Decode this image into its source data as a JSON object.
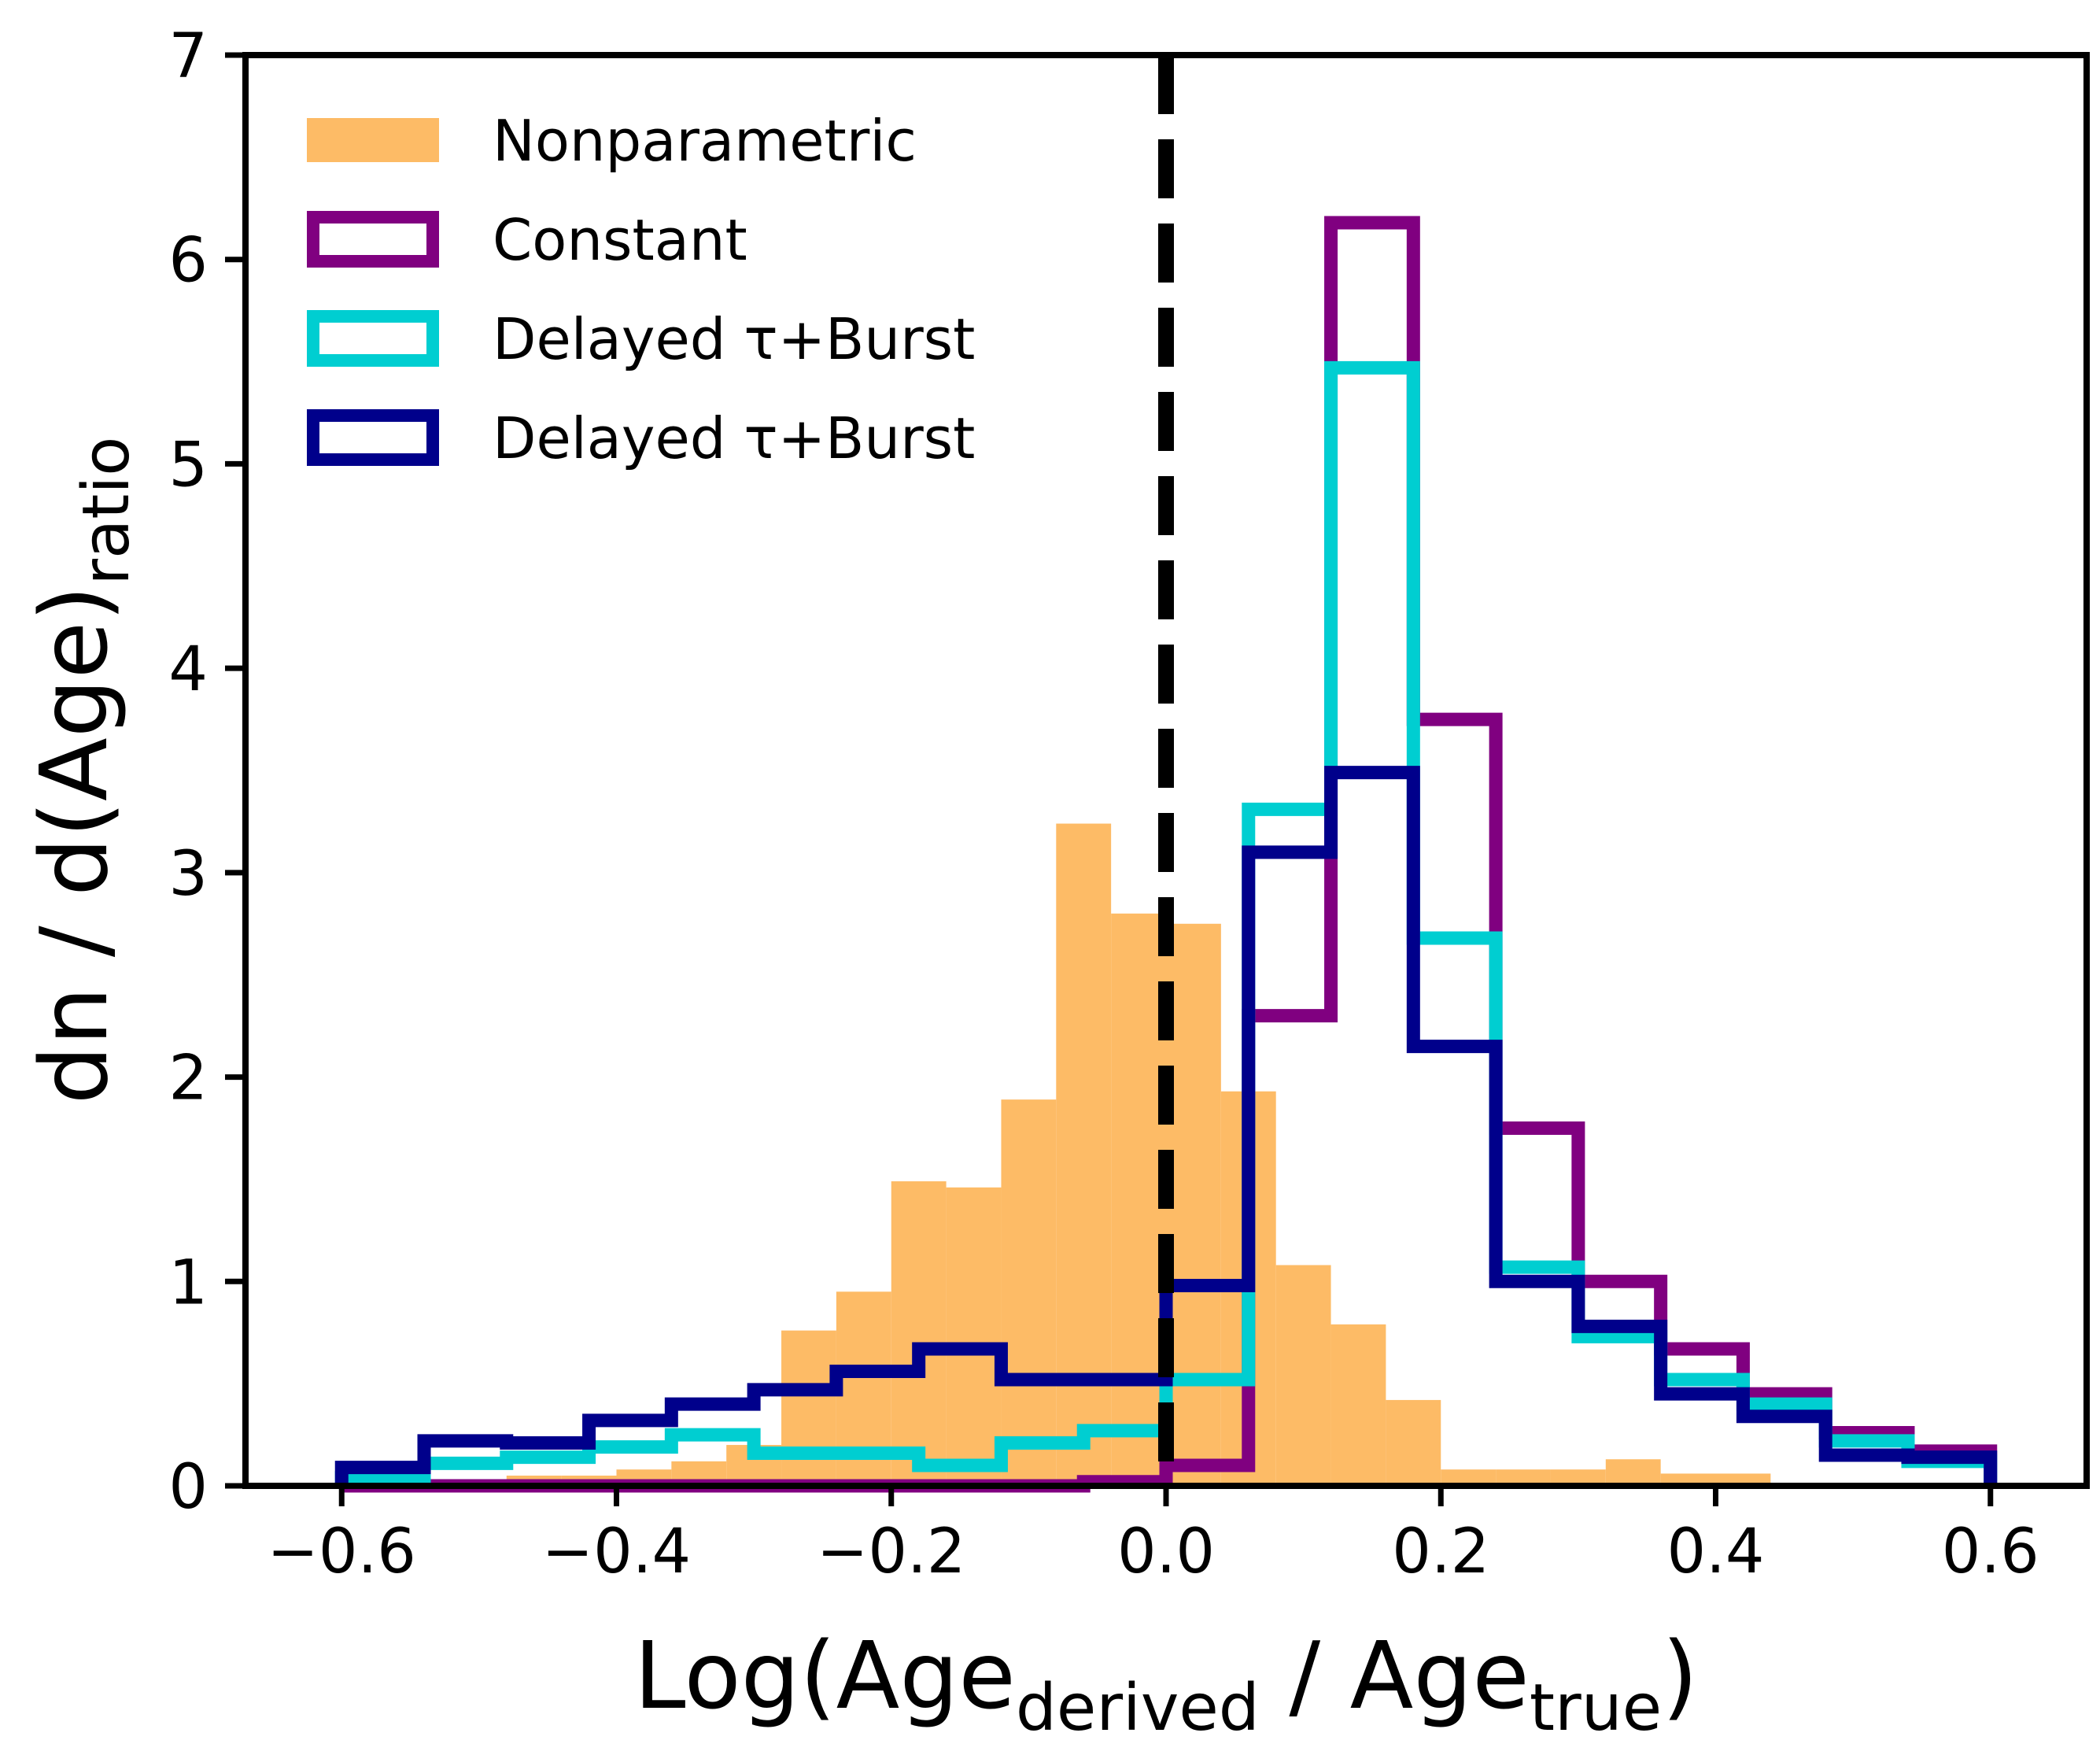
{
  "chart_data": {
    "type": "histogram",
    "xlabel": {
      "main": "Log(Age",
      "sub1": "derived",
      "mid": " / Age",
      "sub2": "true",
      "end": ")"
    },
    "ylabel": {
      "main": "dn / d(Age)",
      "sub": "ratio"
    },
    "xlim": [
      -0.67,
      0.67
    ],
    "ylim": [
      0,
      7
    ],
    "xticks": [
      -0.6,
      -0.4,
      -0.2,
      0.0,
      0.2,
      0.4,
      0.6
    ],
    "xtick_labels": [
      "−0.6",
      "−0.4",
      "−0.2",
      "0.0",
      "0.2",
      "0.4",
      "0.6"
    ],
    "yticks": [
      0,
      1,
      2,
      3,
      4,
      5,
      6,
      7
    ],
    "ytick_labels": [
      "0",
      "1",
      "2",
      "3",
      "4",
      "5",
      "6",
      "7"
    ],
    "grid": false,
    "legend_position": "top-left",
    "reference_line": {
      "x": 0.0,
      "style": "dashed",
      "color": "#000000"
    },
    "series": [
      {
        "name": "Nonparametric",
        "style": "filled",
        "color": "#fdbb66",
        "edges": [
          -0.52,
          -0.48,
          -0.44,
          -0.4,
          -0.36,
          -0.32,
          -0.28,
          -0.24,
          -0.2,
          -0.16,
          -0.12,
          -0.08,
          -0.04,
          0.0,
          0.04,
          0.08,
          0.12,
          0.16,
          0.2,
          0.24,
          0.28,
          0.32,
          0.36,
          0.4,
          0.44,
          0.48,
          0.52
        ],
        "values": [
          0.02,
          0.05,
          0.05,
          0.08,
          0.12,
          0.2,
          0.76,
          0.95,
          1.49,
          1.46,
          1.89,
          3.24,
          2.8,
          2.75,
          1.93,
          1.08,
          0.79,
          0.42,
          0.08,
          0.08,
          0.08,
          0.13,
          0.06,
          0.06,
          0.0,
          0.0
        ]
      },
      {
        "name": "Constant",
        "style": "step",
        "color": "#800080",
        "edges": [
          -0.6,
          -0.54,
          -0.48,
          -0.42,
          -0.36,
          -0.3,
          -0.24,
          -0.18,
          -0.12,
          -0.06,
          0.0,
          0.06,
          0.12,
          0.18,
          0.24,
          0.3,
          0.36,
          0.42,
          0.48,
          0.54,
          0.6
        ],
        "values": [
          0.0,
          0.0,
          0.0,
          0.0,
          0.0,
          0.0,
          0.0,
          0.0,
          0.0,
          0.02,
          0.1,
          2.3,
          6.18,
          3.75,
          1.75,
          1.0,
          0.67,
          0.45,
          0.26,
          0.17
        ]
      },
      {
        "name": "Delayed τ+Burst",
        "style": "step",
        "color": "#00ced1",
        "edges": [
          -0.6,
          -0.54,
          -0.48,
          -0.42,
          -0.36,
          -0.3,
          -0.24,
          -0.18,
          -0.12,
          -0.06,
          0.0,
          0.06,
          0.12,
          0.18,
          0.24,
          0.3,
          0.36,
          0.42,
          0.48,
          0.54,
          0.6
        ],
        "values": [
          0.04,
          0.11,
          0.14,
          0.19,
          0.25,
          0.16,
          0.16,
          0.1,
          0.21,
          0.27,
          0.52,
          3.31,
          5.47,
          2.68,
          1.07,
          0.73,
          0.52,
          0.4,
          0.22,
          0.12
        ]
      },
      {
        "name": "Delayed τ+Burst",
        "style": "step",
        "color": "#00008b",
        "edges": [
          -0.6,
          -0.54,
          -0.48,
          -0.42,
          -0.36,
          -0.3,
          -0.24,
          -0.18,
          -0.12,
          -0.06,
          0.0,
          0.06,
          0.12,
          0.18,
          0.24,
          0.3,
          0.36,
          0.42,
          0.48,
          0.54,
          0.6
        ],
        "values": [
          0.09,
          0.22,
          0.21,
          0.32,
          0.4,
          0.47,
          0.56,
          0.67,
          0.52,
          0.52,
          0.98,
          3.1,
          3.49,
          2.15,
          1.0,
          0.78,
          0.45,
          0.34,
          0.15,
          0.14
        ]
      }
    ]
  }
}
